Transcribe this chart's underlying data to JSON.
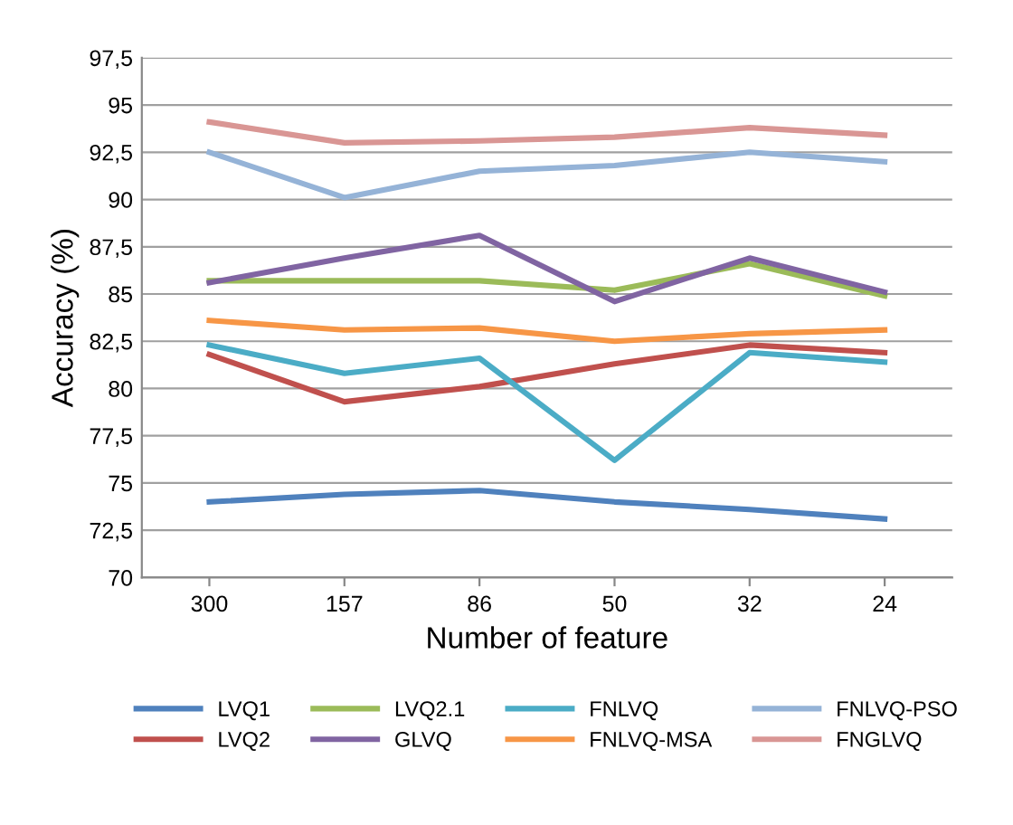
{
  "chart_data": {
    "type": "line",
    "xlabel": "Number of feature",
    "ylabel": "Accuracy (%)",
    "categories": [
      "300",
      "157",
      "86",
      "50",
      "32",
      "24"
    ],
    "series": [
      {
        "name": "LVQ1",
        "color": "#4f81bd",
        "values": [
          74.0,
          74.4,
          74.6,
          74.0,
          73.6,
          73.1
        ]
      },
      {
        "name": "LVQ2",
        "color": "#c0504d",
        "values": [
          81.8,
          79.3,
          80.1,
          81.3,
          82.3,
          81.9
        ]
      },
      {
        "name": "LVQ2.1",
        "color": "#9bbb59",
        "values": [
          85.7,
          85.7,
          85.7,
          85.2,
          86.6,
          84.9
        ]
      },
      {
        "name": "GLVQ",
        "color": "#8064a2",
        "values": [
          85.6,
          86.9,
          88.1,
          84.6,
          86.9,
          85.1
        ]
      },
      {
        "name": "FNLVQ",
        "color": "#4bacc6",
        "values": [
          82.3,
          80.8,
          81.6,
          76.2,
          81.9,
          81.4
        ]
      },
      {
        "name": "FNLVQ-MSA",
        "color": "#f79646",
        "values": [
          83.6,
          83.1,
          83.2,
          82.5,
          82.9,
          83.1
        ]
      },
      {
        "name": "FNLVQ-PSO",
        "color": "#95b3d7",
        "values": [
          92.5,
          90.1,
          91.5,
          91.8,
          92.5,
          92.0
        ]
      },
      {
        "name": "FNGLVQ",
        "color": "#d99694",
        "values": [
          94.1,
          93.0,
          93.1,
          93.3,
          93.8,
          93.4
        ]
      }
    ],
    "ylim": [
      70,
      97.5
    ],
    "yticks": [
      70,
      {
        "value": 72.5,
        "label": "72,5"
      },
      75,
      {
        "value": 77.5,
        "label": "77,5"
      },
      80,
      {
        "value": 82.5,
        "label": "82,5"
      },
      85,
      {
        "value": 87.5,
        "label": "87,5"
      },
      90,
      {
        "value": 92.5,
        "label": "92,5"
      },
      95,
      {
        "value": 97.5,
        "label": "97,5"
      }
    ],
    "grid": "y",
    "legend": "bottom",
    "marker": "none",
    "line_style": "solid"
  }
}
